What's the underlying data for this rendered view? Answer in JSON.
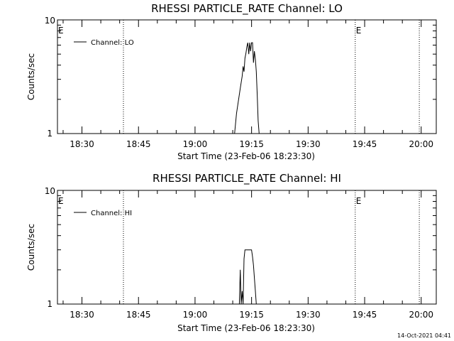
{
  "timestamp": "14-Oct-2021 04:41",
  "chart_data": [
    {
      "type": "line",
      "title": "RHESSI PARTICLE_RATE Channel: LO",
      "xlabel": "Start Time (23-Feb-06 18:23:30)",
      "ylabel": "Counts/sec",
      "y_scale": "log",
      "ylim": [
        1,
        10
      ],
      "y_ticks": [
        "1",
        "10"
      ],
      "xlim": [
        "18:23:30",
        "20:04:00"
      ],
      "x_ticks": [
        "18:30",
        "18:45",
        "19:00",
        "19:15",
        "19:30",
        "19:45",
        "20:00"
      ],
      "legend": {
        "placement": "top-left",
        "entries": [
          "Channel: LO"
        ]
      },
      "markers": [
        {
          "label": "E",
          "time": "18:23:30"
        },
        {
          "label": "",
          "time": "18:41:00"
        },
        {
          "label": "E",
          "time": "19:42:30"
        },
        {
          "label": "",
          "time": "19:59:30"
        }
      ],
      "series": [
        {
          "name": "Channel: LO",
          "x": [
            "19:10:30",
            "19:11:00",
            "19:12:00",
            "19:12:30",
            "19:12:45",
            "19:13:00",
            "19:13:15",
            "19:13:30",
            "19:13:45",
            "19:14:00",
            "19:14:15",
            "19:14:30",
            "19:14:45",
            "19:15:00",
            "19:15:15",
            "19:15:30",
            "19:15:45",
            "19:16:00",
            "19:16:15",
            "19:16:30",
            "19:16:45",
            "19:17:00"
          ],
          "values": [
            1,
            1.5,
            2.5,
            3.2,
            3.9,
            3.5,
            4.6,
            5.1,
            5.8,
            6.3,
            5.0,
            6.3,
            5.3,
            6.3,
            6.3,
            4.2,
            5.3,
            4.5,
            3.5,
            2.2,
            1.3,
            1
          ]
        }
      ]
    },
    {
      "type": "line",
      "title": "RHESSI PARTICLE_RATE Channel: HI",
      "xlabel": "Start Time (23-Feb-06 18:23:30)",
      "ylabel": "Counts/sec",
      "y_scale": "log",
      "ylim": [
        1,
        10
      ],
      "y_ticks": [
        "1",
        "10"
      ],
      "xlim": [
        "18:23:30",
        "20:04:00"
      ],
      "x_ticks": [
        "18:30",
        "18:45",
        "19:00",
        "19:15",
        "19:30",
        "19:45",
        "20:00"
      ],
      "legend": {
        "placement": "top-left",
        "entries": [
          "Channel: HI"
        ]
      },
      "markers": [
        {
          "label": "E",
          "time": "18:23:30"
        },
        {
          "label": "",
          "time": "18:41:00"
        },
        {
          "label": "E",
          "time": "19:42:30"
        },
        {
          "label": "",
          "time": "19:59:30"
        }
      ],
      "series": [
        {
          "name": "Channel: HI",
          "x": [
            "19:11:45",
            "19:12:00",
            "19:12:15",
            "19:12:30",
            "19:12:45",
            "19:13:00",
            "19:13:15",
            "19:13:30",
            "19:14:00",
            "19:14:30",
            "19:15:00",
            "19:15:15",
            "19:15:30",
            "19:15:45",
            "19:16:00",
            "19:16:15"
          ],
          "values": [
            1,
            2,
            1,
            1.3,
            1,
            2.5,
            3,
            3,
            3,
            3,
            3,
            2.6,
            2.2,
            1.7,
            1.3,
            1
          ]
        }
      ]
    }
  ]
}
